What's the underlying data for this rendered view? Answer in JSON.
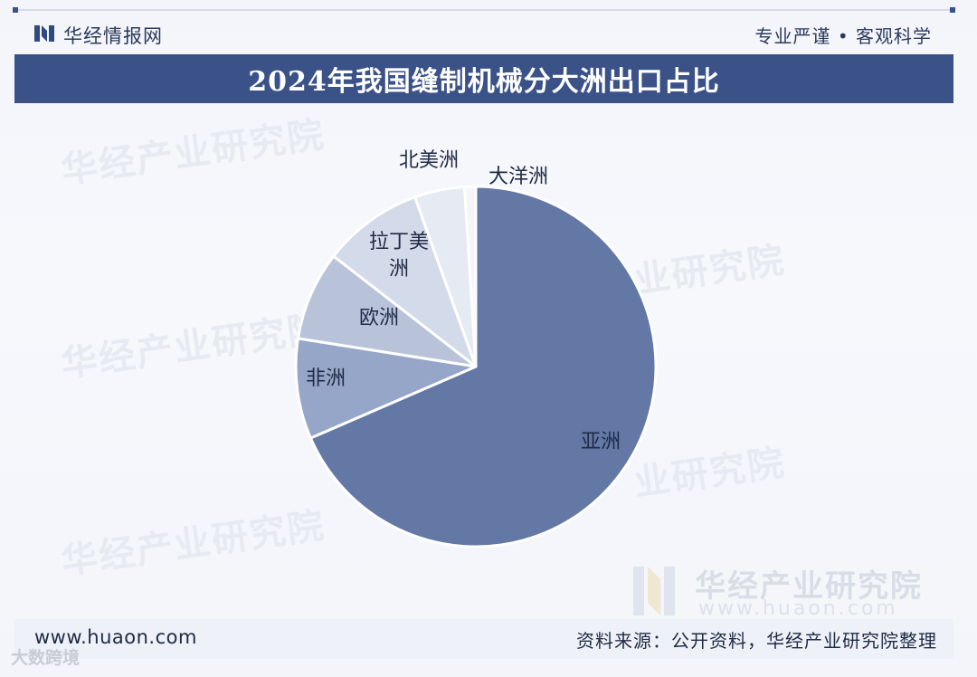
{
  "header": {
    "brand": "华经情报网",
    "slogan": "专业严谨 • 客观科学"
  },
  "title": "2024年我国缝制机械分大洲出口占比",
  "footer": {
    "website": "www.huaon.com",
    "source": "资料来源：公开资料，华经产业研究院整理"
  },
  "watermarks": {
    "text": "华经产业研究院",
    "short": "业研究院",
    "brand_name": "华经产业研究院",
    "brand_url": "www.huaon.com",
    "corner": "大数跨境"
  },
  "colors": {
    "title_bar": "#3a5288",
    "asia": "#6478a6",
    "africa": "#95a6c8",
    "europe": "#b8c3da",
    "latin_america": "#d3dae9",
    "north_america": "#e6ebf3",
    "oceania": "#f4f6fa"
  },
  "chart_data": {
    "type": "pie",
    "title": "2024年我国缝制机械分大洲出口占比",
    "start": "12 o'clock, clockwise",
    "legend": "none",
    "slices": [
      {
        "label": "亚洲",
        "value": 68.5,
        "color": "#6478a6"
      },
      {
        "label": "非洲",
        "value": 9.0,
        "color": "#95a6c8"
      },
      {
        "label": "欧洲",
        "value": 8.0,
        "color": "#b8c3da"
      },
      {
        "label": "拉丁美洲",
        "value": 9.0,
        "color": "#d3dae9"
      },
      {
        "label": "北美洲",
        "value": 4.5,
        "color": "#e6ebf3"
      },
      {
        "label": "大洋洲",
        "value": 1.0,
        "color": "#f4f6fa"
      }
    ]
  }
}
